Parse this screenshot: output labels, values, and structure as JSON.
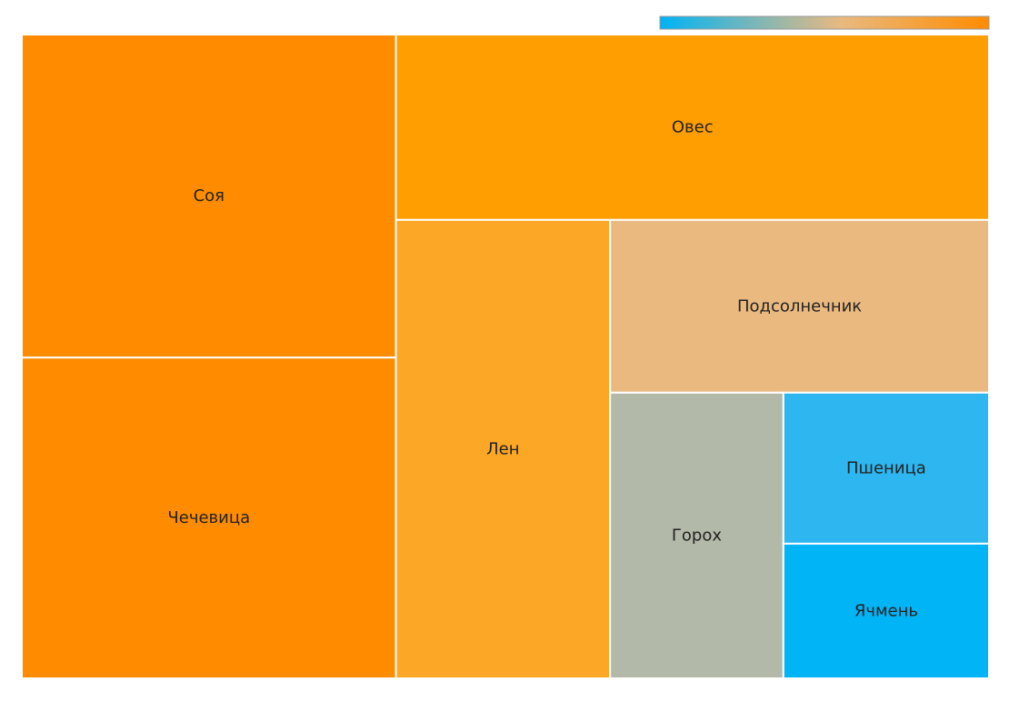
{
  "chart_data": {
    "type": "treemap",
    "color_scale": {
      "min_color": "#00b4f5",
      "mid_color": "#e9b980",
      "max_color": "#ff8c00"
    },
    "items": [
      {
        "label": "Соя",
        "value": 144,
        "color": "#ff8c00"
      },
      {
        "label": "Чечевица",
        "value": 143,
        "color": "#ff8c00"
      },
      {
        "label": "Овес",
        "value": 131,
        "color": "#ff9e00"
      },
      {
        "label": "Лен",
        "value": 117,
        "color": "#fca725"
      },
      {
        "label": "Подсолнечник",
        "value": 78,
        "color": "#e9b980"
      },
      {
        "label": "Горох",
        "value": 59,
        "color": "#b3b9a9"
      },
      {
        "label": "Пшеница",
        "value": 37,
        "color": "#2db6ef"
      },
      {
        "label": "Ячмень",
        "value": 33,
        "color": "#00b4f5"
      }
    ]
  }
}
